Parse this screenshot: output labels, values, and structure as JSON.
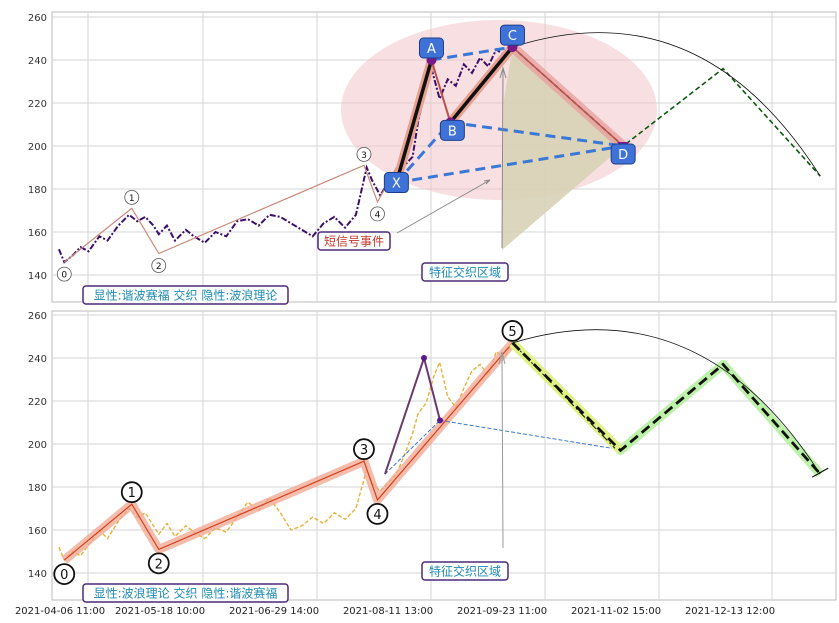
{
  "chart_data": [
    {
      "type": "line",
      "panel": "top",
      "title": "",
      "xlabel": "",
      "ylabel": "",
      "ylim": [
        125,
        262
      ],
      "yticks": [
        140,
        160,
        180,
        200,
        220,
        240,
        260
      ],
      "grid": true,
      "series": [
        {
          "name": "",
          "color": "#3b0f6b",
          "style": "dashdot",
          "points": [
            [
              "2021-04-09",
              152
            ],
            [
              "2021-04-11",
              146
            ],
            [
              "2021-04-14",
              149
            ],
            [
              "2021-04-17",
              153
            ],
            [
              "2021-04-20",
              151
            ],
            [
              "2021-04-24",
              158
            ],
            [
              "2021-04-27",
              156
            ],
            [
              "2021-05-01",
              163
            ],
            [
              "2021-05-05",
              168
            ],
            [
              "2021-05-08",
              165
            ],
            [
              "2021-05-11",
              167
            ],
            [
              "2021-05-14",
              163
            ],
            [
              "2021-05-16",
              159
            ],
            [
              "2021-05-19",
              163
            ],
            [
              "2021-05-22",
              156
            ],
            [
              "2021-05-26",
              161
            ],
            [
              "2021-05-29",
              158
            ],
            [
              "2021-06-02",
              155
            ],
            [
              "2021-06-06",
              160
            ],
            [
              "2021-06-10",
              158
            ],
            [
              "2021-06-14",
              165
            ],
            [
              "2021-06-18",
              166
            ],
            [
              "2021-06-22",
              163
            ],
            [
              "2021-06-26",
              168
            ],
            [
              "2021-06-30",
              167
            ],
            [
              "2021-07-04",
              164
            ],
            [
              "2021-07-08",
              161
            ],
            [
              "2021-07-12",
              158
            ],
            [
              "2021-07-16",
              164
            ],
            [
              "2021-07-20",
              167
            ],
            [
              "2021-07-24",
              162
            ],
            [
              "2021-07-28",
              168
            ],
            [
              "2021-08-01",
              190
            ],
            [
              "2021-08-03",
              184
            ],
            [
              "2021-08-06",
              177
            ],
            [
              "2021-08-09",
              183
            ],
            [
              "2021-08-12",
              182
            ],
            [
              "2021-08-15",
              191
            ],
            [
              "2021-08-18",
              195
            ],
            [
              "2021-08-20",
              211
            ],
            [
              "2021-08-23",
              228
            ],
            [
              "2021-08-25",
              236
            ],
            [
              "2021-08-28",
              222
            ],
            [
              "2021-08-31",
              231
            ],
            [
              "2021-09-03",
              228
            ],
            [
              "2021-09-06",
              238
            ],
            [
              "2021-09-09",
              234
            ],
            [
              "2021-09-12",
              241
            ],
            [
              "2021-09-15",
              237
            ],
            [
              "2021-09-18",
              245
            ],
            [
              "2021-09-21",
              242
            ],
            [
              "2021-09-24",
              247
            ]
          ]
        }
      ],
      "wave_labels": [
        {
          "text": "0",
          "x": "2021-04-11",
          "y": 146
        },
        {
          "text": "1",
          "x": "2021-05-06",
          "y": 171
        },
        {
          "text": "2",
          "x": "2021-05-16",
          "y": 150
        },
        {
          "text": "3",
          "x": "2021-07-31",
          "y": 191
        },
        {
          "text": "4",
          "x": "2021-08-05",
          "y": 174
        }
      ],
      "wave_path": [
        [
          "2021-04-11",
          146
        ],
        [
          "2021-05-06",
          171
        ],
        [
          "2021-05-16",
          150
        ],
        [
          "2021-07-31",
          191
        ],
        [
          "2021-08-05",
          174
        ],
        [
          "2021-08-12",
          190
        ]
      ],
      "xabcd_points": [
        {
          "text": "X",
          "x": "2021-08-12",
          "y": 183
        },
        {
          "text": "A",
          "x": "2021-08-25",
          "y": 240
        },
        {
          "text": "B",
          "x": "2021-09-01",
          "y": 211
        },
        {
          "text": "C",
          "x": "2021-09-24",
          "y": 246
        },
        {
          "text": "D",
          "x": "2021-11-04",
          "y": 200
        }
      ],
      "projection": [
        [
          "2021-09-24",
          246
        ],
        [
          "2021-11-04",
          200
        ],
        [
          "2021-12-11",
          236
        ],
        [
          "2022-01-16",
          186
        ]
      ],
      "annotations": [
        "短信号事件",
        "特征交织区域",
        "显性:谐波赛福 交织 隐性:波浪理论"
      ]
    },
    {
      "type": "line",
      "panel": "bottom",
      "title": "",
      "xlabel": "",
      "ylabel": "",
      "ylim": [
        125,
        262
      ],
      "yticks": [
        140,
        160,
        180,
        200,
        220,
        240,
        260
      ],
      "grid": true,
      "x_tick_labels": [
        "2021-04-06 11:00",
        "2021-05-18 10:00",
        "2021-06-29 14:00",
        "2021-08-11 13:00",
        "2021-09-23 11:00",
        "2021-11-02 15:00",
        "2021-12-13 12:00"
      ],
      "series": [
        {
          "name": "",
          "color": "#e8b23a",
          "style": "dashed",
          "points": [
            [
              "2021-04-09",
              152
            ],
            [
              "2021-04-11",
              146
            ],
            [
              "2021-04-14",
              150
            ],
            [
              "2021-04-17",
              148
            ],
            [
              "2021-04-20",
              153
            ],
            [
              "2021-04-24",
              160
            ],
            [
              "2021-04-27",
              156
            ],
            [
              "2021-05-01",
              164
            ],
            [
              "2021-05-05",
              170
            ],
            [
              "2021-05-08",
              166
            ],
            [
              "2021-05-11",
              168
            ],
            [
              "2021-05-14",
              162
            ],
            [
              "2021-05-16",
              158
            ],
            [
              "2021-05-19",
              163
            ],
            [
              "2021-05-22",
              157
            ],
            [
              "2021-05-26",
              162
            ],
            [
              "2021-05-29",
              159
            ],
            [
              "2021-06-02",
              156
            ],
            [
              "2021-06-06",
              161
            ],
            [
              "2021-06-10",
              159
            ],
            [
              "2021-06-14",
              166
            ],
            [
              "2021-06-18",
              173
            ],
            [
              "2021-06-22",
              169
            ],
            [
              "2021-06-26",
              175
            ],
            [
              "2021-06-30",
              168
            ],
            [
              "2021-07-04",
              160
            ],
            [
              "2021-07-08",
              162
            ],
            [
              "2021-07-12",
              166
            ],
            [
              "2021-07-16",
              163
            ],
            [
              "2021-07-20",
              168
            ],
            [
              "2021-07-24",
              165
            ],
            [
              "2021-07-28",
              170
            ],
            [
              "2021-08-01",
              188
            ],
            [
              "2021-08-03",
              182
            ],
            [
              "2021-08-06",
              178
            ],
            [
              "2021-08-09",
              182
            ],
            [
              "2021-08-12",
              186
            ],
            [
              "2021-08-15",
              195
            ],
            [
              "2021-08-18",
              205
            ],
            [
              "2021-08-20",
              214
            ],
            [
              "2021-08-23",
              219
            ],
            [
              "2021-08-26",
              232
            ],
            [
              "2021-08-28",
              238
            ],
            [
              "2021-08-31",
              222
            ],
            [
              "2021-09-03",
              217
            ],
            [
              "2021-09-06",
              226
            ],
            [
              "2021-09-09",
              234
            ],
            [
              "2021-09-12",
              237
            ],
            [
              "2021-09-15",
              232
            ],
            [
              "2021-09-18",
              243
            ],
            [
              "2021-09-21",
              240
            ],
            [
              "2021-09-24",
              248
            ]
          ]
        }
      ],
      "wave_labels": [
        {
          "text": "0",
          "x": "2021-04-11",
          "y": 146
        },
        {
          "text": "1",
          "x": "2021-05-06",
          "y": 172
        },
        {
          "text": "2",
          "x": "2021-05-16",
          "y": 151
        },
        {
          "text": "3",
          "x": "2021-07-31",
          "y": 192
        },
        {
          "text": "4",
          "x": "2021-08-05",
          "y": 174
        },
        {
          "text": "5",
          "x": "2021-09-24",
          "y": 247
        }
      ],
      "wave_path": [
        [
          "2021-04-11",
          146
        ],
        [
          "2021-05-06",
          172
        ],
        [
          "2021-05-16",
          151
        ],
        [
          "2021-07-31",
          192
        ],
        [
          "2021-08-05",
          174
        ],
        [
          "2021-09-24",
          247
        ]
      ],
      "projection": [
        [
          "2021-09-24",
          247
        ],
        [
          "2021-11-03",
          197
        ],
        [
          "2021-12-11",
          237
        ],
        [
          "2022-01-16",
          186
        ]
      ],
      "annotations": [
        "特征交织区域",
        "显性:波浪理论 交织 隐性:谐波赛福"
      ]
    }
  ]
}
